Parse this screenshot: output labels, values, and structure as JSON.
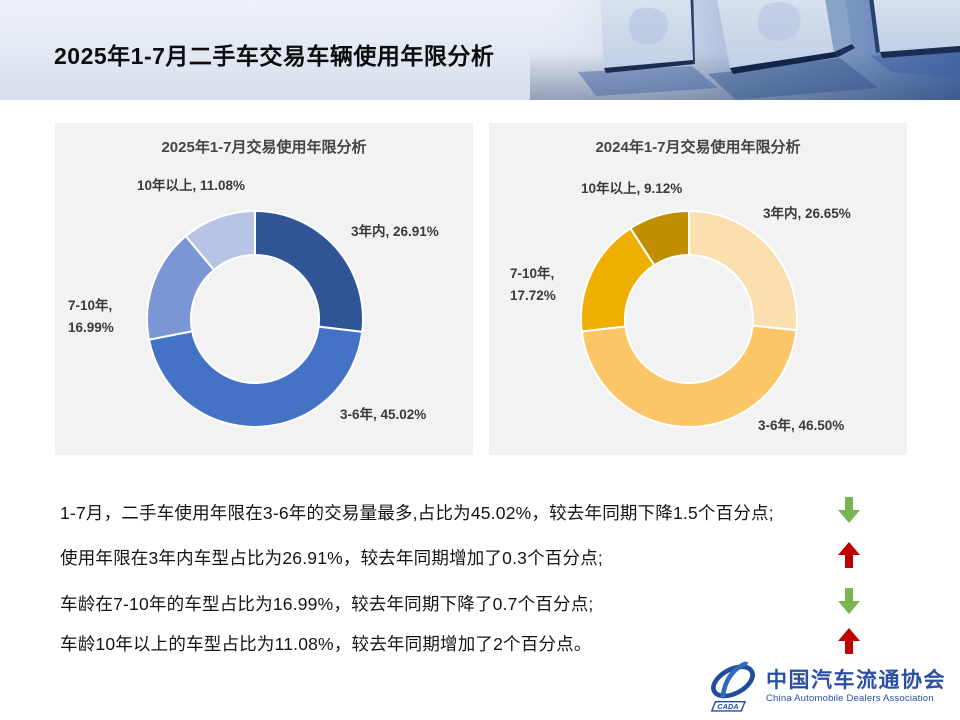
{
  "page": {
    "title": "2025年1-7月二手车交易车辆使用年限分析"
  },
  "chart_data": [
    {
      "type": "pie",
      "subtype": "donut",
      "title": "2025年1-7月交易使用年限分析",
      "order": "clockwise-from-top",
      "slices": [
        {
          "label": "3年内",
          "value": 26.91,
          "pct": "26.91%",
          "color": "#2F5597"
        },
        {
          "label": "3-6年",
          "value": 45.02,
          "pct": "45.02%",
          "color": "#4472C4"
        },
        {
          "label": "7-10年",
          "value": 16.99,
          "pct": "16.99%",
          "color": "#7A96D4"
        },
        {
          "label": "10年以上",
          "value": 11.08,
          "pct": "11.08%",
          "color": "#B7C4E5"
        }
      ]
    },
    {
      "type": "pie",
      "subtype": "donut",
      "title": "2024年1-7月交易使用年限分析",
      "order": "clockwise-from-top",
      "slices": [
        {
          "label": "3年内",
          "value": 26.65,
          "pct": "26.65%",
          "color": "#FBDFAE"
        },
        {
          "label": "3-6年",
          "value": 46.5,
          "pct": "46.50%",
          "color": "#FBC667"
        },
        {
          "label": "7-10年",
          "value": 17.72,
          "pct": "17.72%",
          "color": "#EFAF00"
        },
        {
          "label": "10年以上",
          "value": 9.12,
          "pct": "9.12%",
          "color": "#BF8F00"
        }
      ]
    }
  ],
  "bullets": [
    {
      "text": "1-7月，二手车使用年限在3-6年的交易量最多,占比为45.02%，较去年同期下降1.5个百分点;",
      "trend": "down"
    },
    {
      "text": "使用年限在3年内车型占比为26.91%，较去年同期增加了0.3个百分点;",
      "trend": "up"
    },
    {
      "text": "车龄在7-10年的车型占比为16.99%，较去年同期下降了0.7个百分点;",
      "trend": "down"
    },
    {
      "text": "车龄10年以上的车型占比为11.08%，较去年同期增加了2个百分点。",
      "trend": "up"
    }
  ],
  "colors": {
    "trend_up": "#C00000",
    "trend_down": "#79B551",
    "panel_bg": "#F2F2F2",
    "logo_blue": "#2B4FA2"
  },
  "logo": {
    "acronym": "CADA",
    "cn": "中国汽车流通协会",
    "en": "China Automobile Dealers Association"
  }
}
